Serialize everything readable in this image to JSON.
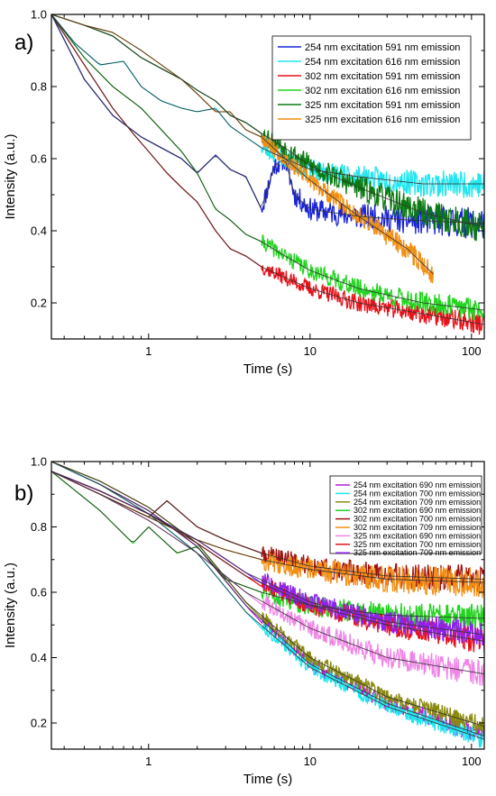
{
  "chart_data": [
    {
      "panel_label": "a)",
      "type": "line",
      "xscale": "log",
      "xlabel": "Time (s)",
      "ylabel": "Intensity (a.u.)",
      "xlim": [
        0.25,
        120
      ],
      "ylim": [
        0.1,
        1.0
      ],
      "xticks": [
        {
          "v": 1,
          "label": "1"
        },
        {
          "v": 10,
          "label": "10"
        },
        {
          "v": 100,
          "label": "100"
        }
      ],
      "yticks": [
        {
          "v": 0.2,
          "label": "0.2"
        },
        {
          "v": 0.4,
          "label": "0.4"
        },
        {
          "v": 0.6,
          "label": "0.6"
        },
        {
          "v": 0.8,
          "label": "0.8"
        },
        {
          "v": 1.0,
          "label": "1.0"
        }
      ],
      "legend_position": "top-right",
      "series": [
        {
          "name": "254 nm excitation 591 nm emission",
          "color": "#1a24d6",
          "seed": 11,
          "y0": 1.0,
          "yinf": 0.42,
          "tau": 1.3,
          "beta": 0.6,
          "noise": 0.02,
          "xmax": 120,
          "raw": [
            [
              0.25,
              1.0
            ],
            [
              0.4,
              0.82
            ],
            [
              0.6,
              0.72
            ],
            [
              0.9,
              0.66
            ],
            [
              1.2,
              0.63
            ],
            [
              1.6,
              0.6
            ],
            [
              2.0,
              0.56
            ],
            [
              2.6,
              0.61
            ],
            [
              3.2,
              0.57
            ],
            [
              4.0,
              0.55
            ],
            [
              5,
              0.46
            ],
            [
              6,
              0.58
            ],
            [
              7,
              0.6
            ],
            [
              8,
              0.5
            ],
            [
              10,
              0.46
            ],
            [
              14,
              0.45
            ],
            [
              20,
              0.44
            ],
            [
              40,
              0.43
            ],
            [
              120,
              0.42
            ]
          ]
        },
        {
          "name": "254 nm excitation 616 nm emission",
          "color": "#1fe6ef",
          "seed": 23,
          "y0": 1.0,
          "yinf": 0.52,
          "tau": 1.6,
          "beta": 0.6,
          "noise": 0.018,
          "xmax": 120,
          "raw": [
            [
              0.25,
              1.0
            ],
            [
              0.35,
              0.92
            ],
            [
              0.5,
              0.86
            ],
            [
              0.7,
              0.87
            ],
            [
              0.9,
              0.8
            ],
            [
              1.2,
              0.76
            ],
            [
              1.6,
              0.74
            ],
            [
              2.0,
              0.73
            ],
            [
              2.6,
              0.74
            ],
            [
              3.2,
              0.69
            ],
            [
              4.0,
              0.66
            ],
            [
              5,
              0.63
            ],
            [
              7,
              0.6
            ],
            [
              10,
              0.57
            ],
            [
              20,
              0.55
            ],
            [
              50,
              0.53
            ],
            [
              120,
              0.53
            ]
          ]
        },
        {
          "name": "302 nm excitation 591 nm emission",
          "color": "#e8121b",
          "seed": 37,
          "y0": 1.0,
          "yinf": 0.13,
          "tau": 1.6,
          "beta": 0.45,
          "noise": 0.014,
          "xmax": 120,
          "raw": [
            [
              0.25,
              1.0
            ],
            [
              0.4,
              0.86
            ],
            [
              0.6,
              0.74
            ],
            [
              0.8,
              0.67
            ],
            [
              1.0,
              0.62
            ],
            [
              1.3,
              0.56
            ],
            [
              1.6,
              0.52
            ],
            [
              2.0,
              0.48
            ],
            [
              2.6,
              0.4
            ],
            [
              3.2,
              0.35
            ],
            [
              4.0,
              0.33
            ],
            [
              5,
              0.3
            ],
            [
              7,
              0.27
            ],
            [
              10,
              0.24
            ],
            [
              20,
              0.2
            ],
            [
              50,
              0.17
            ],
            [
              120,
              0.14
            ]
          ]
        },
        {
          "name": "302 nm excitation 616 nm emission",
          "color": "#22d41f",
          "seed": 41,
          "y0": 1.0,
          "yinf": 0.16,
          "tau": 2.0,
          "beta": 0.45,
          "noise": 0.015,
          "xmax": 120,
          "raw": [
            [
              0.25,
              1.0
            ],
            [
              0.4,
              0.88
            ],
            [
              0.6,
              0.8
            ],
            [
              0.9,
              0.74
            ],
            [
              1.2,
              0.68
            ],
            [
              1.6,
              0.62
            ],
            [
              2.0,
              0.56
            ],
            [
              2.6,
              0.46
            ],
            [
              3.2,
              0.43
            ],
            [
              4.0,
              0.39
            ],
            [
              5,
              0.37
            ],
            [
              7,
              0.33
            ],
            [
              10,
              0.29
            ],
            [
              20,
              0.24
            ],
            [
              50,
              0.2
            ],
            [
              120,
              0.18
            ]
          ]
        },
        {
          "name": "325 nm excitation 591 nm emission",
          "color": "#0c7a12",
          "seed": 53,
          "y0": 1.0,
          "yinf": 0.38,
          "tau": 5.0,
          "beta": 0.7,
          "noise": 0.02,
          "xmax": 120,
          "raw": [
            [
              0.25,
              1.0
            ],
            [
              0.4,
              0.97
            ],
            [
              0.6,
              0.94
            ],
            [
              0.9,
              0.88
            ],
            [
              1.2,
              0.85
            ],
            [
              1.6,
              0.82
            ],
            [
              2.0,
              0.79
            ],
            [
              2.6,
              0.76
            ],
            [
              3.2,
              0.72
            ],
            [
              4.0,
              0.7
            ],
            [
              5,
              0.67
            ],
            [
              7,
              0.63
            ],
            [
              10,
              0.58
            ],
            [
              20,
              0.52
            ],
            [
              50,
              0.45
            ],
            [
              120,
              0.41
            ]
          ]
        },
        {
          "name": "325 nm excitation 616 nm emission",
          "color": "#f28f14",
          "seed": 67,
          "y0": 1.0,
          "yinf": 0.0,
          "tau": 14.0,
          "beta": 0.55,
          "noise": 0.015,
          "xmax": 58,
          "raw": [
            [
              0.25,
              1.0
            ],
            [
              0.4,
              0.97
            ],
            [
              0.6,
              0.95
            ],
            [
              0.9,
              0.9
            ],
            [
              1.2,
              0.86
            ],
            [
              1.6,
              0.82
            ],
            [
              2.0,
              0.78
            ],
            [
              2.6,
              0.73
            ],
            [
              3.2,
              0.73
            ],
            [
              4.0,
              0.68
            ],
            [
              5,
              0.66
            ],
            [
              7,
              0.6
            ],
            [
              10,
              0.54
            ],
            [
              20,
              0.44
            ],
            [
              40,
              0.35
            ],
            [
              58,
              0.28
            ]
          ]
        }
      ]
    },
    {
      "panel_label": "b)",
      "type": "line",
      "xscale": "log",
      "xlabel": "Time (s)",
      "ylabel": "Intensity (a.u.)",
      "xlim": [
        0.25,
        120
      ],
      "ylim": [
        0.12,
        1.0
      ],
      "xticks": [
        {
          "v": 1,
          "label": "1"
        },
        {
          "v": 10,
          "label": "10"
        },
        {
          "v": 100,
          "label": "100"
        }
      ],
      "yticks": [
        {
          "v": 0.2,
          "label": "0.2"
        },
        {
          "v": 0.4,
          "label": "0.4"
        },
        {
          "v": 0.6,
          "label": "0.6"
        },
        {
          "v": 0.8,
          "label": "0.8"
        },
        {
          "v": 1.0,
          "label": "1.0"
        }
      ],
      "legend_position": "top-right",
      "series": [
        {
          "name": "254 nm excitation 690 nm emission",
          "color": "#b21fe0",
          "seed": 101,
          "y0": 1.0,
          "yinf": 0.1,
          "tau": 7.0,
          "beta": 0.55,
          "noise": 0.013,
          "xmax": 120,
          "raw": [
            [
              0.25,
              1.0
            ],
            [
              0.5,
              0.93
            ],
            [
              1.0,
              0.85
            ],
            [
              2,
              0.74
            ],
            [
              4,
              0.56
            ],
            [
              10,
              0.38
            ],
            [
              30,
              0.26
            ],
            [
              120,
              0.16
            ]
          ]
        },
        {
          "name": "254 nm excitation 700 nm emission",
          "color": "#1fe6ef",
          "seed": 113,
          "y0": 1.0,
          "yinf": 0.1,
          "tau": 6.5,
          "beta": 0.55,
          "noise": 0.013,
          "xmax": 120,
          "raw": [
            [
              0.25,
              1.0
            ],
            [
              0.5,
              0.93
            ],
            [
              1.0,
              0.84
            ],
            [
              2,
              0.72
            ],
            [
              4,
              0.54
            ],
            [
              10,
              0.37
            ],
            [
              30,
              0.25
            ],
            [
              120,
              0.15
            ]
          ]
        },
        {
          "name": "254 nm excitation 709 nm emission",
          "color": "#8a8a10",
          "seed": 127,
          "y0": 1.0,
          "yinf": 0.12,
          "tau": 7.5,
          "beta": 0.55,
          "noise": 0.013,
          "xmax": 120,
          "raw": [
            [
              0.25,
              1.0
            ],
            [
              0.5,
              0.94
            ],
            [
              1.0,
              0.86
            ],
            [
              2,
              0.75
            ],
            [
              4,
              0.57
            ],
            [
              10,
              0.4
            ],
            [
              30,
              0.28
            ],
            [
              120,
              0.19
            ]
          ]
        },
        {
          "name": "302 nm excitation 690 nm emission",
          "color": "#22d41f",
          "seed": 131,
          "y0": 0.99,
          "yinf": 0.5,
          "tau": 2.0,
          "beta": 0.6,
          "noise": 0.02,
          "xmax": 120,
          "raw": [
            [
              0.25,
              0.97
            ],
            [
              0.5,
              0.85
            ],
            [
              0.8,
              0.75
            ],
            [
              1.0,
              0.8
            ],
            [
              1.5,
              0.72
            ],
            [
              2,
              0.74
            ],
            [
              3,
              0.64
            ],
            [
              5,
              0.6
            ],
            [
              10,
              0.56
            ],
            [
              30,
              0.53
            ],
            [
              120,
              0.52
            ]
          ]
        },
        {
          "name": "302 nm excitation 700 nm emission",
          "color": "#a01010",
          "seed": 149,
          "y0": 0.98,
          "yinf": 0.63,
          "tau": 2.0,
          "beta": 0.6,
          "noise": 0.02,
          "xmax": 120,
          "raw": [
            [
              0.25,
              0.97
            ],
            [
              0.5,
              0.9
            ],
            [
              1.0,
              0.83
            ],
            [
              1.3,
              0.88
            ],
            [
              2,
              0.8
            ],
            [
              3,
              0.76
            ],
            [
              5,
              0.72
            ],
            [
              10,
              0.68
            ],
            [
              30,
              0.65
            ],
            [
              120,
              0.64
            ]
          ]
        },
        {
          "name": "302 nm excitation 709 nm emission",
          "color": "#f28f14",
          "seed": 157,
          "y0": 0.98,
          "yinf": 0.62,
          "tau": 2.2,
          "beta": 0.6,
          "noise": 0.022,
          "xmax": 120,
          "raw": [
            [
              0.25,
              0.97
            ],
            [
              0.5,
              0.9
            ],
            [
              1.0,
              0.83
            ],
            [
              2,
              0.76
            ],
            [
              3,
              0.73
            ],
            [
              5,
              0.7
            ],
            [
              10,
              0.67
            ],
            [
              30,
              0.64
            ],
            [
              120,
              0.63
            ]
          ]
        },
        {
          "name": "325 nm excitation 690 nm emission",
          "color": "#ef86e6",
          "seed": 163,
          "y0": 0.97,
          "yinf": 0.32,
          "tau": 5.0,
          "beta": 0.6,
          "noise": 0.018,
          "xmax": 120,
          "raw": [
            [
              0.25,
              0.97
            ],
            [
              0.5,
              0.9
            ],
            [
              1.0,
              0.82
            ],
            [
              2,
              0.72
            ],
            [
              4,
              0.6
            ],
            [
              10,
              0.49
            ],
            [
              30,
              0.4
            ],
            [
              120,
              0.35
            ]
          ]
        },
        {
          "name": "325 nm excitation 700 nm emission",
          "color": "#e8121b",
          "seed": 173,
          "y0": 0.97,
          "yinf": 0.42,
          "tau": 4.5,
          "beta": 0.6,
          "noise": 0.018,
          "xmax": 120,
          "raw": [
            [
              0.25,
              0.97
            ],
            [
              0.5,
              0.91
            ],
            [
              1.0,
              0.84
            ],
            [
              2,
              0.75
            ],
            [
              4,
              0.65
            ],
            [
              10,
              0.56
            ],
            [
              30,
              0.5
            ],
            [
              120,
              0.45
            ]
          ]
        },
        {
          "name": "325 nm excitation 709 nm emission",
          "color": "#8f22ef",
          "seed": 181,
          "y0": 0.97,
          "yinf": 0.44,
          "tau": 4.5,
          "beta": 0.6,
          "noise": 0.018,
          "xmax": 120,
          "raw": [
            [
              0.25,
              0.97
            ],
            [
              0.5,
              0.91
            ],
            [
              1.0,
              0.84
            ],
            [
              2,
              0.76
            ],
            [
              4,
              0.66
            ],
            [
              10,
              0.57
            ],
            [
              30,
              0.51
            ],
            [
              120,
              0.47
            ]
          ]
        }
      ]
    }
  ]
}
